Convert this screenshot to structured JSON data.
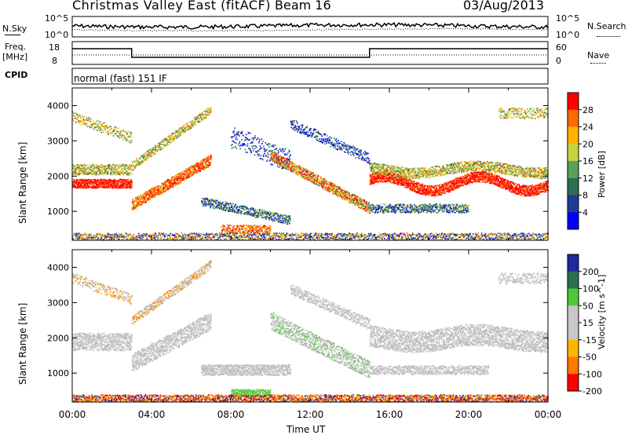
{
  "header": {
    "title": "Christmas Valley East (fitACF)",
    "beam": "Beam 16",
    "date": "03/Aug/2013"
  },
  "top_panels": {
    "nsky_label": "N.Sky",
    "nsearch_label": "N.Search",
    "noise_ticks_left": [
      "10^5",
      "10^0"
    ],
    "noise_ticks_right": [
      "10^5",
      "10^0"
    ],
    "freq_label": "Freq.",
    "freq_unit": "[MHz]",
    "freq_ticks": [
      "18",
      "8"
    ],
    "nave_label": "Nave",
    "nave_ticks": [
      "60",
      "0"
    ],
    "cpid_label": "CPID",
    "cpid_value": "normal (fast) 151 IF"
  },
  "chart_data": [
    {
      "type": "heatmap",
      "name": "power",
      "ylabel": "Slant Range [km]",
      "xlabel": "",
      "y_ticks": [
        "4000",
        "3000",
        "2000",
        "1000"
      ],
      "ylim": [
        180,
        4500
      ],
      "colorbar_title": "Power [dB]",
      "colorbar_ticks": [
        "28",
        "24",
        "20",
        "16",
        "12",
        "8",
        "4"
      ],
      "colorbar_colors": [
        "#ff0000",
        "#ff6a00",
        "#ffb400",
        "#c8d23c",
        "#5aa05a",
        "#2c6e50",
        "#1e3c96",
        "#0000ff"
      ]
    },
    {
      "type": "heatmap",
      "name": "velocity",
      "ylabel": "Slant Range [km]",
      "xlabel": "Time UT",
      "y_ticks": [
        "4000",
        "3000",
        "2000",
        "1000"
      ],
      "ylim": [
        180,
        4500
      ],
      "x_ticks": [
        "00:00",
        "04:00",
        "08:00",
        "12:00",
        "16:00",
        "20:00",
        "00:00"
      ],
      "colorbar_title": "Velocity [m s^-1]",
      "colorbar_ticks": [
        "200",
        "100",
        "50",
        "15",
        "-15",
        "-50",
        "-100",
        "-200"
      ],
      "colorbar_colors": [
        "#1e28a0",
        "#2c6e50",
        "#50c83c",
        "#c8c8c8",
        "#c8c8c8",
        "#ffb400",
        "#ff7800",
        "#ff0000"
      ]
    }
  ]
}
